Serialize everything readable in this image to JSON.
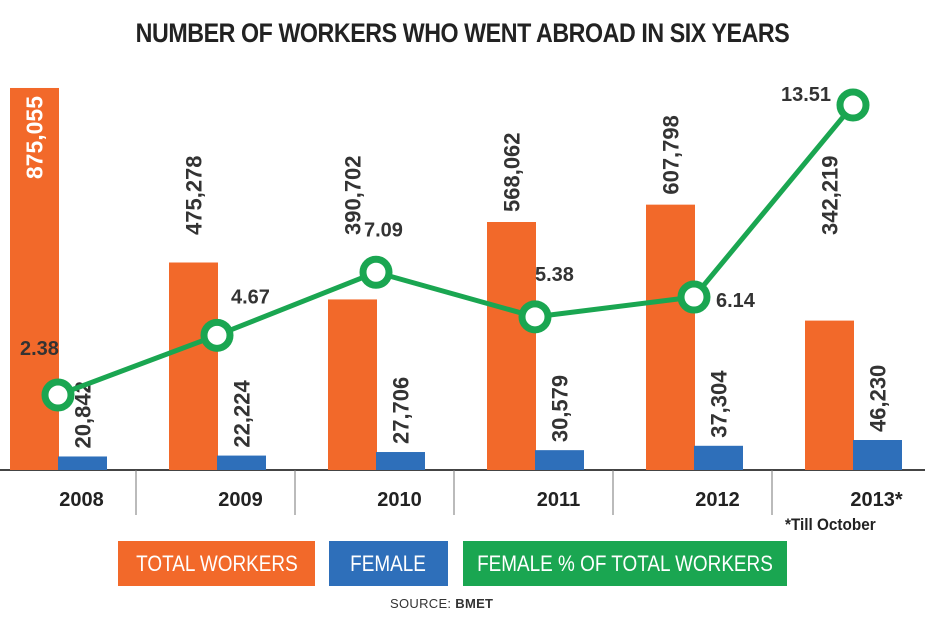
{
  "chart_data": {
    "type": "bar",
    "title": "NUMBER OF WORKERS WHO WENT ABROAD IN SIX YEARS",
    "categories": [
      "2008",
      "2009",
      "2010",
      "2011",
      "2012",
      "2013*"
    ],
    "series": [
      {
        "name": "TOTAL WORKERS",
        "type": "bar",
        "values": [
          875055,
          475278,
          390702,
          568062,
          607798,
          342219
        ],
        "labels": [
          "875,055",
          "475,278",
          "390,702",
          "568,062",
          "607,798",
          "342,219"
        ],
        "color": "#f2692a"
      },
      {
        "name": "FEMALE",
        "type": "bar",
        "values": [
          20842,
          22224,
          27706,
          30579,
          37304,
          46230
        ],
        "labels": [
          "20,842",
          "22,224",
          "27,706",
          "30,579",
          "37,304",
          "46,230"
        ],
        "color": "#2e6fba"
      },
      {
        "name": "FEMALE % OF TOTAL WORKERS",
        "type": "line",
        "values": [
          2.38,
          4.67,
          7.09,
          5.38,
          6.14,
          13.51
        ],
        "labels": [
          "2.38",
          "4.67",
          "7.09",
          "5.38",
          "6.14",
          "13.51"
        ],
        "color": "#1aa651"
      }
    ],
    "note": "*Till October",
    "source_label": "SOURCE:",
    "source": "BMET",
    "legend_position": "bottom",
    "grid": false
  }
}
